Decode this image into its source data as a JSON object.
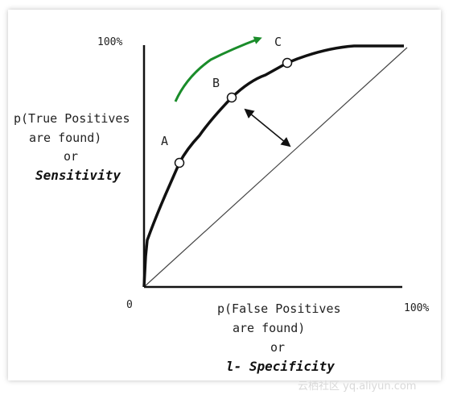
{
  "axes": {
    "y_max_label": "100%",
    "origin_label": "0",
    "x_max_label": "100%",
    "y_title_lines": [
      "p(True Positives",
      "are found)",
      "or"
    ],
    "y_title_emphasis": "Sensitivity",
    "x_title_lines": [
      "p(False Positives",
      "are found)",
      "or"
    ],
    "x_title_emphasis": "l- Specificity"
  },
  "points": {
    "a": "A",
    "b": "B",
    "c": "C"
  },
  "colors": {
    "curve": "#111111",
    "diagonal": "#444444",
    "green_arrow": "#1a8c2a"
  },
  "watermark": "云栖社区 yq.aliyun.com"
}
